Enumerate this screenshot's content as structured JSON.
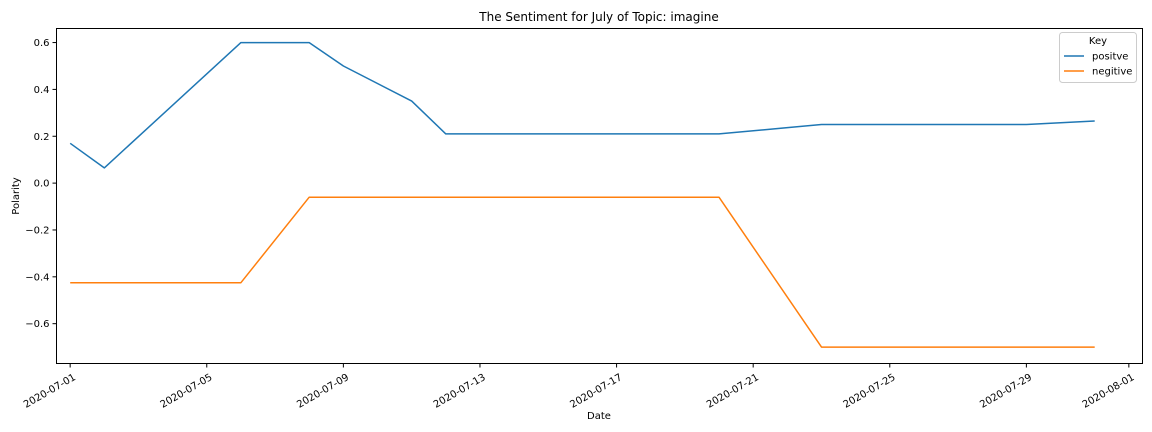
{
  "chart_data": {
    "type": "line",
    "title": "The Sentiment for July of Topic: imagine",
    "xlabel": "Date",
    "ylabel": "Polarity",
    "x_range": [
      "2020-07-01",
      "2020-07-31"
    ],
    "xlim_days": [
      -0.4,
      31.4
    ],
    "ylim": [
      -0.77,
      0.66
    ],
    "x_ticks": [
      "2020-07-01",
      "2020-07-05",
      "2020-07-09",
      "2020-07-13",
      "2020-07-17",
      "2020-07-21",
      "2020-07-25",
      "2020-07-29",
      "2020-08-01"
    ],
    "x_tick_days": [
      0,
      4,
      8,
      12,
      16,
      20,
      24,
      28,
      31
    ],
    "y_ticks": [
      0.6,
      0.4,
      0.2,
      0.0,
      -0.2,
      -0.4,
      -0.6
    ],
    "y_tick_labels": [
      "0.6",
      "0.4",
      "0.2",
      "0.0",
      "−0.2",
      "−0.4",
      "−0.6"
    ],
    "legend": {
      "title": "Key",
      "position": "top-right"
    },
    "series": [
      {
        "name": "positve",
        "color": "#1f77b4",
        "points": [
          {
            "day": 0,
            "value": 0.17
          },
          {
            "day": 1,
            "value": 0.065
          },
          {
            "day": 5,
            "value": 0.6
          },
          {
            "day": 7,
            "value": 0.6
          },
          {
            "day": 8,
            "value": 0.5
          },
          {
            "day": 10,
            "value": 0.35
          },
          {
            "day": 11,
            "value": 0.21
          },
          {
            "day": 19,
            "value": 0.21
          },
          {
            "day": 22,
            "value": 0.25
          },
          {
            "day": 28,
            "value": 0.25
          },
          {
            "day": 30,
            "value": 0.265
          }
        ]
      },
      {
        "name": "negitive",
        "color": "#ff7f0e",
        "points": [
          {
            "day": 0,
            "value": -0.425
          },
          {
            "day": 5,
            "value": -0.425
          },
          {
            "day": 7,
            "value": -0.06
          },
          {
            "day": 19,
            "value": -0.06
          },
          {
            "day": 22,
            "value": -0.7
          },
          {
            "day": 30,
            "value": -0.7
          }
        ]
      }
    ]
  }
}
